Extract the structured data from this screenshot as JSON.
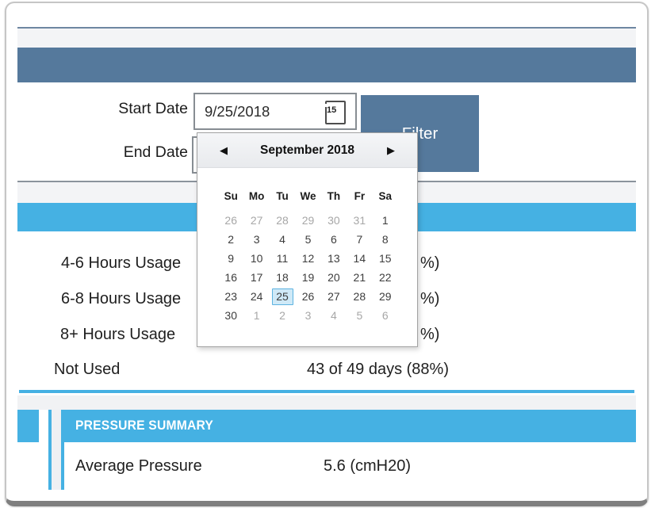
{
  "filter_panel": {
    "start_date": {
      "label": "Start Date",
      "value": "9/25/2018"
    },
    "end_date": {
      "label": "End Date",
      "value": ""
    },
    "filter_button_label": "Filter"
  },
  "calendar": {
    "title": "September 2018",
    "prev_icon": "◀",
    "next_icon": "▶",
    "icon_day": "15",
    "day_headers": [
      "Su",
      "Mo",
      "Tu",
      "We",
      "Th",
      "Fr",
      "Sa"
    ],
    "selected_day": "25",
    "cells": [
      {
        "d": "26",
        "muted": true
      },
      {
        "d": "27",
        "muted": true
      },
      {
        "d": "28",
        "muted": true
      },
      {
        "d": "29",
        "muted": true
      },
      {
        "d": "30",
        "muted": true
      },
      {
        "d": "31",
        "muted": true
      },
      {
        "d": "1"
      },
      {
        "d": "2"
      },
      {
        "d": "3"
      },
      {
        "d": "4"
      },
      {
        "d": "5"
      },
      {
        "d": "6"
      },
      {
        "d": "7"
      },
      {
        "d": "8"
      },
      {
        "d": "9"
      },
      {
        "d": "10"
      },
      {
        "d": "11"
      },
      {
        "d": "12"
      },
      {
        "d": "13"
      },
      {
        "d": "14"
      },
      {
        "d": "15"
      },
      {
        "d": "16"
      },
      {
        "d": "17"
      },
      {
        "d": "18"
      },
      {
        "d": "19"
      },
      {
        "d": "20"
      },
      {
        "d": "21"
      },
      {
        "d": "22"
      },
      {
        "d": "23"
      },
      {
        "d": "24"
      },
      {
        "d": "25",
        "selected": true
      },
      {
        "d": "26"
      },
      {
        "d": "27"
      },
      {
        "d": "28"
      },
      {
        "d": "29"
      },
      {
        "d": "30"
      },
      {
        "d": "1",
        "muted": true
      },
      {
        "d": "2",
        "muted": true
      },
      {
        "d": "3",
        "muted": true
      },
      {
        "d": "4",
        "muted": true
      },
      {
        "d": "5",
        "muted": true
      },
      {
        "d": "6",
        "muted": true
      }
    ]
  },
  "usage_summary": {
    "rows": [
      {
        "label": "4-6 Hours Usage",
        "value": "%)"
      },
      {
        "label": "6-8 Hours Usage",
        "value": "%)"
      },
      {
        "label": "8+ Hours Usage",
        "value": "%)"
      },
      {
        "label": "Not Used",
        "value": "43 of 49 days (88%)"
      }
    ]
  },
  "pressure_summary": {
    "title": "PRESSURE SUMMARY",
    "rows": [
      {
        "label": "Average Pressure",
        "value": "5.6 (cmH20)"
      }
    ]
  },
  "colors": {
    "slate_header": "#55799c",
    "accent_blue": "#45b1e3",
    "selected_day_bg": "#cfe9f7",
    "selected_day_border": "#5db3e0",
    "strip_gray": "#f3f4f6",
    "frame_border": "#c6c6c6",
    "frame_bottom": "#7f7f7f"
  }
}
